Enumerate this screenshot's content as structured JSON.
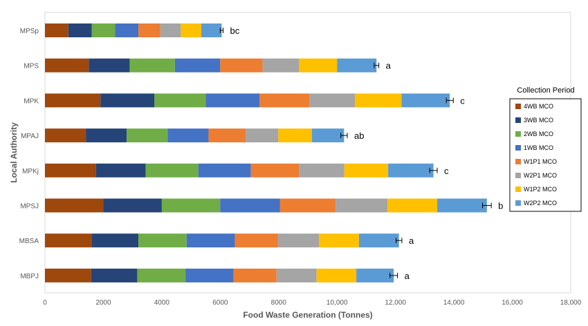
{
  "chart_data": {
    "type": "bar",
    "orientation": "horizontal",
    "stacked": true,
    "xlabel": "Food Waste Generation (Tonnes)",
    "ylabel": "Local Authority",
    "xlim": [
      0,
      18000
    ],
    "x_ticks": [
      "0",
      "2000",
      "4000",
      "6000",
      "8000",
      "10,000",
      "12,000",
      "14,000",
      "16,000",
      "18,000"
    ],
    "grid": false,
    "legend_title": "Collection Period",
    "legend_position": "right",
    "categories": [
      "MPSp",
      "MPS",
      "MPK",
      "MPAJ",
      "MPKj",
      "MPSJ",
      "MBSA",
      "MBPJ"
    ],
    "significance_letters": [
      "bc",
      "a",
      "c",
      "ab",
      "c",
      "b",
      "a",
      "a"
    ],
    "error_bars": [
      50,
      80,
      120,
      110,
      130,
      150,
      100,
      130
    ],
    "series": [
      {
        "name": "4WB MCO",
        "color": "#9e480e",
        "values": [
          800,
          1500,
          1900,
          1400,
          1750,
          2000,
          1600,
          1580
        ]
      },
      {
        "name": "3WB MCO",
        "color": "#264478",
        "values": [
          800,
          1400,
          1850,
          1400,
          1700,
          2000,
          1600,
          1580
        ]
      },
      {
        "name": "2WB MCO",
        "color": "#70ad47",
        "values": [
          800,
          1550,
          1750,
          1400,
          1800,
          2000,
          1650,
          1650
        ]
      },
      {
        "name": "1WB MCO",
        "color": "#4472c4",
        "values": [
          800,
          1550,
          1850,
          1400,
          1800,
          2050,
          1650,
          1650
        ]
      },
      {
        "name": "W1P1 MCO",
        "color": "#ed7d31",
        "values": [
          750,
          1450,
          1700,
          1270,
          1650,
          1900,
          1480,
          1470
        ]
      },
      {
        "name": "W2P1 MCO",
        "color": "#a5a5a5",
        "values": [
          700,
          1250,
          1560,
          1120,
          1550,
          1780,
          1400,
          1370
        ]
      },
      {
        "name": "W1P2 MCO",
        "color": "#ffc000",
        "values": [
          700,
          1300,
          1600,
          1150,
          1500,
          1700,
          1370,
          1360
        ]
      },
      {
        "name": "W2P2 MCO",
        "color": "#5b9bd5",
        "values": [
          700,
          1350,
          1650,
          1100,
          1550,
          1700,
          1370,
          1280
        ]
      }
    ]
  }
}
